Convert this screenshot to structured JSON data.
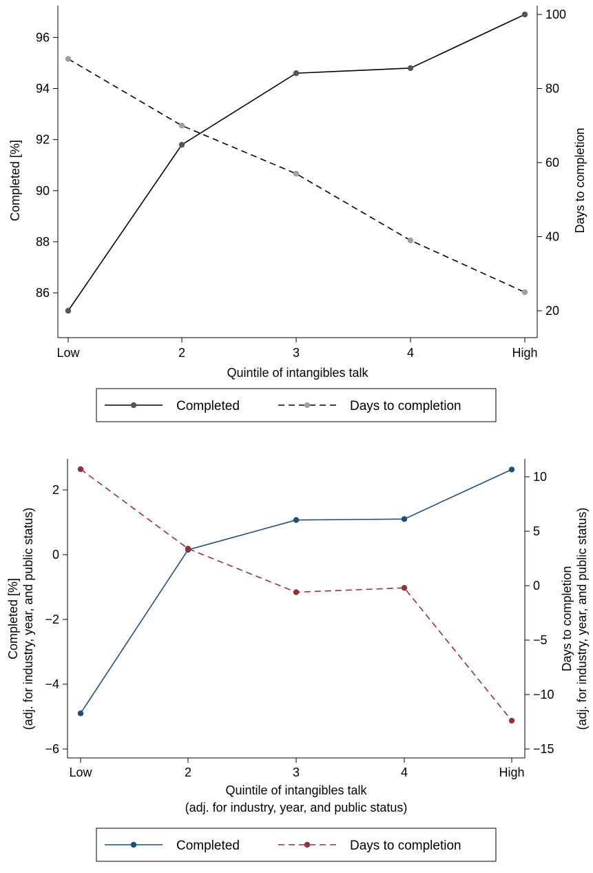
{
  "chart_data": [
    {
      "type": "line",
      "title": "",
      "categories": [
        "Low",
        "2",
        "3",
        "4",
        "High"
      ],
      "xlabel": "Quintile of intangibles talk",
      "ylabel_left": "Completed [%]",
      "ylabel_right": "Days to completion",
      "ylim_left": [
        85.0,
        97.4
      ],
      "ylim_right": [
        18,
        103
      ],
      "yticks_left": [
        86,
        88,
        90,
        92,
        94,
        96
      ],
      "yticks_right": [
        20,
        40,
        60,
        80,
        100
      ],
      "grid": false,
      "legend_position": "bottom",
      "series": [
        {
          "name": "Completed",
          "axis": "left",
          "style": "solid",
          "color": "#555555",
          "values": [
            85.3,
            91.8,
            94.6,
            94.8,
            96.9
          ]
        },
        {
          "name": "Days to completion",
          "axis": "right",
          "style": "dashed",
          "color": "#a0a0a0",
          "values": [
            88,
            70,
            57,
            39,
            25
          ]
        }
      ]
    },
    {
      "type": "line",
      "title": "",
      "categories": [
        "Low",
        "2",
        "3",
        "4",
        "High"
      ],
      "xlabel": "Quintile of intangibles talk",
      "xlabel_sub": "(adj. for industry, year, and public status)",
      "ylabel_left": "Completed [%]",
      "ylabel_left_sub": "(adj. for industry, year, and public status)",
      "ylabel_right": "Days to completion",
      "ylabel_right_sub": "(adj. for industry, year, and public status)",
      "ylim_left": [
        -6.5,
        2.95
      ],
      "ylim_right": [
        -16,
        11.8
      ],
      "yticks_left": [
        -6,
        -4,
        -2,
        0,
        2
      ],
      "yticks_left_labels": [
        "−6",
        "−4",
        "−2",
        "0",
        "2"
      ],
      "yticks_right": [
        -15,
        -10,
        -5,
        0,
        5,
        10
      ],
      "yticks_right_labels": [
        "−15",
        "−10",
        "−5",
        "0",
        "5",
        "10"
      ],
      "grid": false,
      "legend_position": "bottom",
      "series": [
        {
          "name": "Completed",
          "axis": "left",
          "style": "solid",
          "color": "#1f4e79",
          "values": [
            -4.9,
            0.15,
            1.07,
            1.1,
            2.63
          ]
        },
        {
          "name": "Days to completion",
          "axis": "right",
          "style": "dashed",
          "color": "#943138",
          "values": [
            10.7,
            3.4,
            -0.6,
            -0.2,
            -12.4
          ]
        }
      ]
    }
  ]
}
